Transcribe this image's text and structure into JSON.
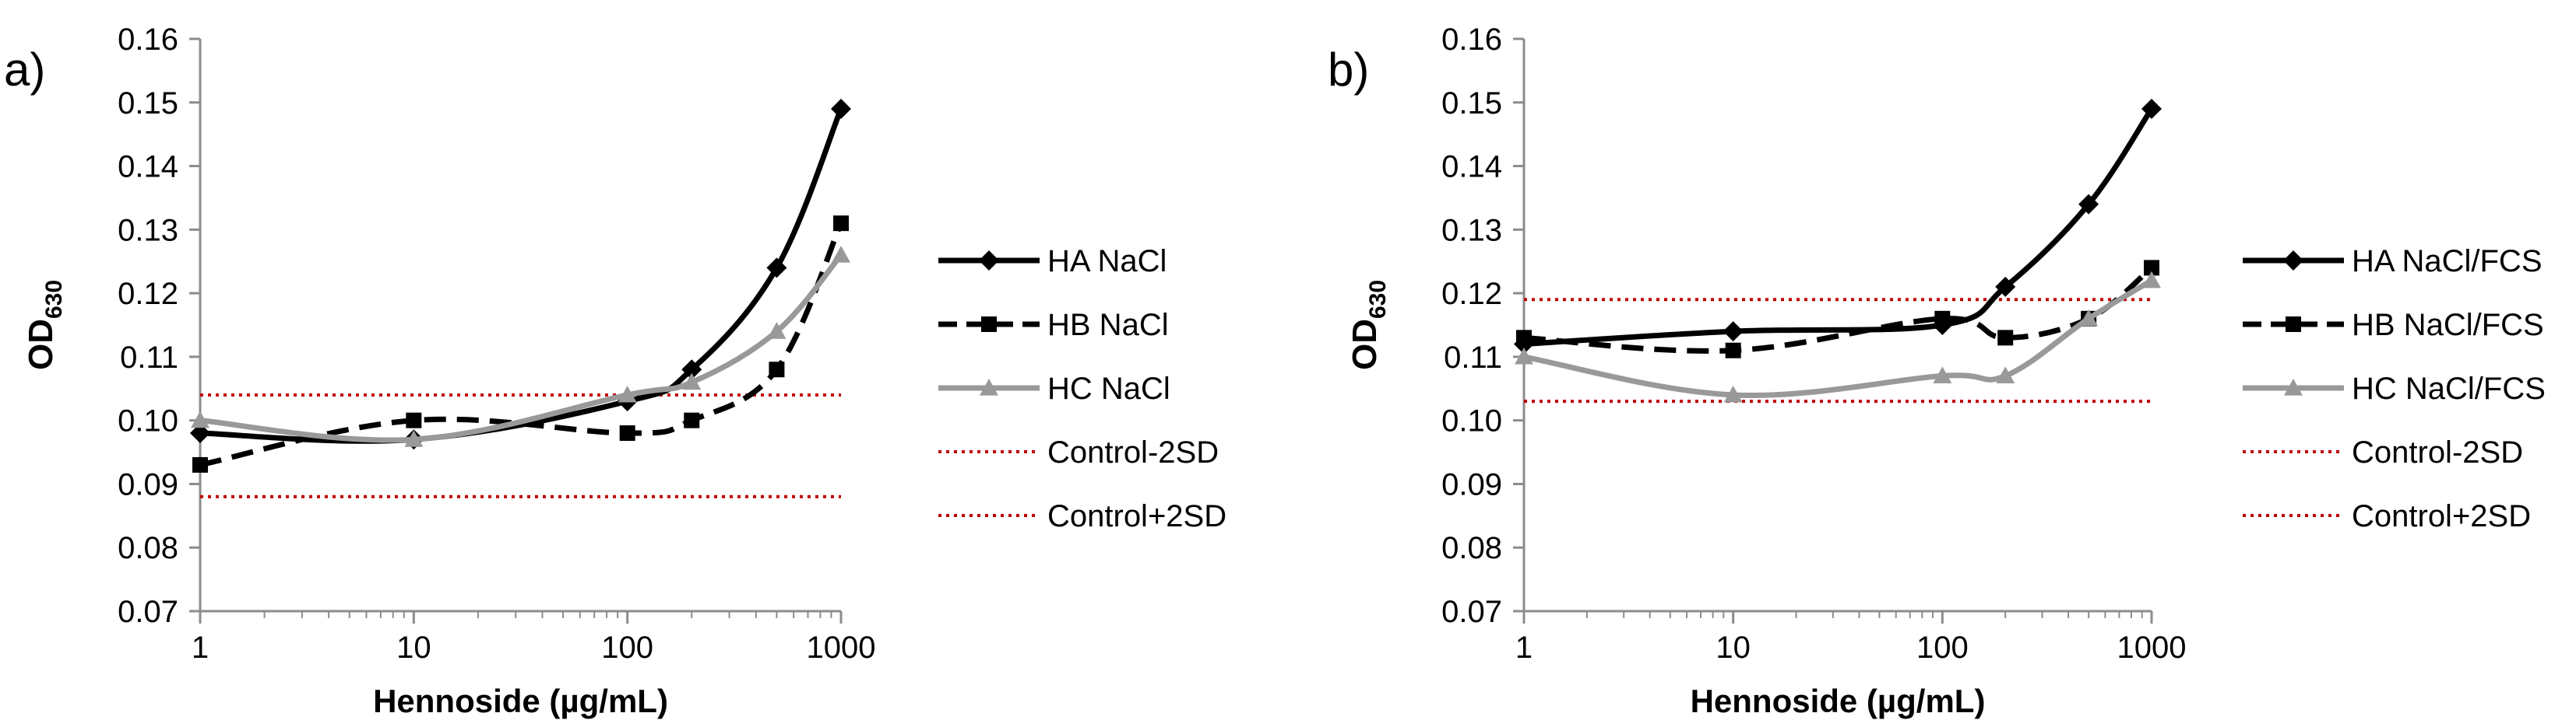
{
  "chart_data": [
    {
      "panel_label": "a)",
      "type": "line",
      "xscale": "log",
      "xlim": [
        1,
        1000
      ],
      "ylim": [
        0.07,
        0.16
      ],
      "xticks": [
        1,
        10,
        100,
        1000
      ],
      "xtick_labels": [
        "1",
        "10",
        "100",
        "1000"
      ],
      "yticks": [
        0.07,
        0.08,
        0.09,
        0.1,
        0.11,
        0.12,
        0.13,
        0.14,
        0.15,
        0.16
      ],
      "ytick_labels": [
        "0.07",
        "0.08",
        "0.09",
        "0.10",
        "0.11",
        "0.12",
        "0.13",
        "0.14",
        "0.15",
        "0.16"
      ],
      "xlabel": "Hennoside (µg/mL)",
      "ylabel": "OD",
      "ylabel_sub": "630",
      "grid": false,
      "legend_position": "right",
      "series": [
        {
          "name": "HA NaCl",
          "color": "#000000",
          "dash": "solid",
          "marker": "diamond",
          "x": [
            1,
            10,
            100,
            200,
            500,
            1000
          ],
          "y": [
            0.098,
            0.097,
            0.103,
            0.108,
            0.124,
            0.149
          ]
        },
        {
          "name": "HB NaCl",
          "color": "#000000",
          "dash": "dashed",
          "marker": "square",
          "x": [
            1,
            10,
            100,
            200,
            500,
            1000
          ],
          "y": [
            0.093,
            0.1,
            0.098,
            0.1,
            0.108,
            0.131
          ]
        },
        {
          "name": "HC NaCl",
          "color": "#999999",
          "dash": "solid",
          "marker": "triangle",
          "x": [
            1,
            10,
            100,
            200,
            500,
            1000
          ],
          "y": [
            0.1,
            0.097,
            0.104,
            0.106,
            0.114,
            0.126
          ]
        }
      ],
      "reference_lines": [
        {
          "name": "Control-2SD",
          "color": "#c00000",
          "y": 0.104
        },
        {
          "name": "Control+2SD",
          "color": "#c00000",
          "y": 0.088
        }
      ]
    },
    {
      "panel_label": "b)",
      "type": "line",
      "xscale": "log",
      "xlim": [
        1,
        1000
      ],
      "ylim": [
        0.07,
        0.16
      ],
      "xticks": [
        1,
        10,
        100,
        1000
      ],
      "xtick_labels": [
        "1",
        "10",
        "100",
        "1000"
      ],
      "yticks": [
        0.07,
        0.08,
        0.09,
        0.1,
        0.11,
        0.12,
        0.13,
        0.14,
        0.15,
        0.16
      ],
      "ytick_labels": [
        "0.07",
        "0.08",
        "0.09",
        "0.10",
        "0.11",
        "0.12",
        "0.13",
        "0.14",
        "0.15",
        "0.16"
      ],
      "xlabel": "Hennoside (µg/mL)",
      "ylabel": "OD",
      "ylabel_sub": "630",
      "grid": false,
      "legend_position": "right",
      "series": [
        {
          "name": "HA NaCl/FCS",
          "color": "#000000",
          "dash": "solid",
          "marker": "diamond",
          "x": [
            1,
            10,
            100,
            200,
            500,
            1000
          ],
          "y": [
            0.112,
            0.114,
            0.115,
            0.121,
            0.134,
            0.149
          ]
        },
        {
          "name": "HB NaCl/FCS",
          "color": "#000000",
          "dash": "dashed",
          "marker": "square",
          "x": [
            1,
            10,
            100,
            200,
            500,
            1000
          ],
          "y": [
            0.113,
            0.111,
            0.116,
            0.113,
            0.116,
            0.124
          ]
        },
        {
          "name": "HC NaCl/FCS",
          "color": "#999999",
          "dash": "solid",
          "marker": "triangle",
          "x": [
            1,
            10,
            100,
            200,
            500,
            1000
          ],
          "y": [
            0.11,
            0.104,
            0.107,
            0.107,
            0.116,
            0.122
          ]
        }
      ],
      "reference_lines": [
        {
          "name": "Control-2SD",
          "color": "#c00000",
          "y": 0.119
        },
        {
          "name": "Control+2SD",
          "color": "#c00000",
          "y": 0.103
        }
      ]
    }
  ]
}
